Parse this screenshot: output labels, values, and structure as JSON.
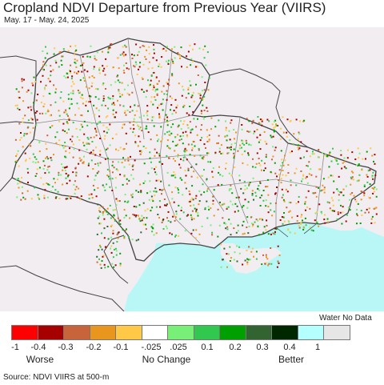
{
  "title": "Cropland NDVI Departure from Previous Year (VIIRS)",
  "subtitle": "May. 17 - May. 24, 2025",
  "source": "Source: NDVI VIIRS at 500-m",
  "colors": {
    "land": "#f1edf0",
    "sea": "#b9f7f7",
    "border": "#444444",
    "oblast": "#8a8a8a"
  },
  "legend": {
    "nodata_label": "Water No Data",
    "swatches": [
      {
        "color": "#ff0000",
        "range": "-1 to -0.4"
      },
      {
        "color": "#a60000",
        "range": "-0.4 to -0.3"
      },
      {
        "color": "#c8643c",
        "range": "-0.3 to -0.2"
      },
      {
        "color": "#e8961e",
        "range": "-0.2 to -0.1"
      },
      {
        "color": "#ffc846",
        "range": "-0.1 to -0.025"
      },
      {
        "color": "#ffffff",
        "range": "-0.025 to 0.025"
      },
      {
        "color": "#78f078",
        "range": "0.025 to 0.1"
      },
      {
        "color": "#32c850",
        "range": "0.1 to 0.2"
      },
      {
        "color": "#00a000",
        "range": "0.2 to 0.3"
      },
      {
        "color": "#326432",
        "range": "0.3 to 0.4"
      },
      {
        "color": "#002800",
        "range": "0.4 to 1"
      },
      {
        "color": "#b4ffff",
        "range": "Water"
      },
      {
        "color": "#e6e6e6",
        "range": "No Data"
      }
    ],
    "ticks": [
      "-1",
      "-0.4",
      "-0.3",
      "-0.2",
      "-0.1",
      "-.025",
      ".025",
      "0.1",
      "0.2",
      "0.3",
      "0.4",
      "1"
    ],
    "categories": [
      "Worse",
      "No Change",
      "Better"
    ]
  }
}
